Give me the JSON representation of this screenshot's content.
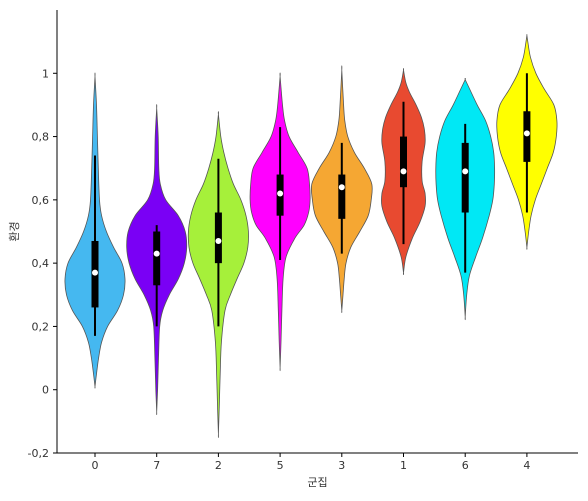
{
  "chart_data": {
    "type": "violin",
    "title": "",
    "xlabel": "군집",
    "ylabel": "환경",
    "ylim": [
      -0.2,
      1.2
    ],
    "yticks": [
      -0.2,
      0,
      0.2,
      0.4,
      0.6,
      0.8,
      1
    ],
    "ytick_labels": [
      "-0,2",
      "0",
      "0,2",
      "0,4",
      "0,6",
      "0,8",
      "1"
    ],
    "grid": false,
    "categories": [
      "0",
      "7",
      "2",
      "5",
      "3",
      "1",
      "6",
      "4"
    ],
    "violins": [
      {
        "category": "0",
        "color": "#45b8f0",
        "min": 0.01,
        "max": 0.99,
        "q1": 0.26,
        "median": 0.37,
        "q3": 0.47,
        "whisker_low": 0.17,
        "whisker_high": 0.74,
        "density": [
          [
            0.01,
            0.0
          ],
          [
            0.05,
            0.05
          ],
          [
            0.1,
            0.12
          ],
          [
            0.15,
            0.22
          ],
          [
            0.2,
            0.42
          ],
          [
            0.25,
            0.75
          ],
          [
            0.3,
            0.95
          ],
          [
            0.35,
            1.0
          ],
          [
            0.4,
            0.9
          ],
          [
            0.45,
            0.62
          ],
          [
            0.5,
            0.38
          ],
          [
            0.55,
            0.22
          ],
          [
            0.6,
            0.15
          ],
          [
            0.7,
            0.11
          ],
          [
            0.8,
            0.08
          ],
          [
            0.9,
            0.05
          ],
          [
            0.99,
            0.0
          ]
        ]
      },
      {
        "category": "7",
        "color": "#7a00f5",
        "min": -0.07,
        "max": 0.89,
        "q1": 0.33,
        "median": 0.43,
        "q3": 0.5,
        "whisker_low": 0.2,
        "whisker_high": 0.52,
        "density": [
          [
            -0.07,
            0.0
          ],
          [
            0.0,
            0.03
          ],
          [
            0.1,
            0.06
          ],
          [
            0.2,
            0.1
          ],
          [
            0.25,
            0.2
          ],
          [
            0.3,
            0.42
          ],
          [
            0.35,
            0.72
          ],
          [
            0.4,
            0.92
          ],
          [
            0.45,
            1.0
          ],
          [
            0.5,
            0.95
          ],
          [
            0.55,
            0.72
          ],
          [
            0.6,
            0.3
          ],
          [
            0.65,
            0.12
          ],
          [
            0.7,
            0.07
          ],
          [
            0.8,
            0.05
          ],
          [
            0.89,
            0.0
          ]
        ]
      },
      {
        "category": "2",
        "color": "#a6f03a",
        "min": -0.14,
        "max": 0.87,
        "q1": 0.4,
        "median": 0.47,
        "q3": 0.56,
        "whisker_low": 0.2,
        "whisker_high": 0.73,
        "density": [
          [
            -0.14,
            0.0
          ],
          [
            -0.05,
            0.03
          ],
          [
            0.05,
            0.06
          ],
          [
            0.15,
            0.1
          ],
          [
            0.25,
            0.22
          ],
          [
            0.3,
            0.4
          ],
          [
            0.35,
            0.62
          ],
          [
            0.4,
            0.85
          ],
          [
            0.45,
            0.98
          ],
          [
            0.5,
            1.0
          ],
          [
            0.55,
            0.92
          ],
          [
            0.6,
            0.75
          ],
          [
            0.65,
            0.5
          ],
          [
            0.7,
            0.32
          ],
          [
            0.75,
            0.18
          ],
          [
            0.8,
            0.08
          ],
          [
            0.87,
            0.0
          ]
        ]
      },
      {
        "category": "5",
        "color": "#ff00ff",
        "min": 0.07,
        "max": 0.99,
        "q1": 0.55,
        "median": 0.62,
        "q3": 0.68,
        "whisker_low": 0.41,
        "whisker_high": 0.83,
        "density": [
          [
            0.07,
            0.0
          ],
          [
            0.15,
            0.03
          ],
          [
            0.25,
            0.06
          ],
          [
            0.35,
            0.1
          ],
          [
            0.42,
            0.2
          ],
          [
            0.48,
            0.5
          ],
          [
            0.52,
            0.8
          ],
          [
            0.56,
            0.95
          ],
          [
            0.6,
            1.0
          ],
          [
            0.65,
            0.98
          ],
          [
            0.7,
            0.9
          ],
          [
            0.75,
            0.6
          ],
          [
            0.8,
            0.3
          ],
          [
            0.85,
            0.15
          ],
          [
            0.9,
            0.08
          ],
          [
            0.99,
            0.0
          ]
        ]
      },
      {
        "category": "3",
        "color": "#f5a733",
        "min": 0.25,
        "max": 1.01,
        "q1": 0.54,
        "median": 0.64,
        "q3": 0.68,
        "whisker_low": 0.43,
        "whisker_high": 0.78,
        "density": [
          [
            0.25,
            0.0
          ],
          [
            0.3,
            0.04
          ],
          [
            0.35,
            0.08
          ],
          [
            0.4,
            0.14
          ],
          [
            0.45,
            0.3
          ],
          [
            0.5,
            0.6
          ],
          [
            0.55,
            0.88
          ],
          [
            0.6,
            0.98
          ],
          [
            0.65,
            1.0
          ],
          [
            0.7,
            0.75
          ],
          [
            0.75,
            0.42
          ],
          [
            0.8,
            0.2
          ],
          [
            0.85,
            0.1
          ],
          [
            0.9,
            0.06
          ],
          [
            1.01,
            0.0
          ]
        ]
      },
      {
        "category": "1",
        "color": "#e84a30",
        "min": 0.37,
        "max": 1.01,
        "q1": 0.64,
        "median": 0.69,
        "q3": 0.8,
        "whisker_low": 0.46,
        "whisker_high": 0.91,
        "density": [
          [
            0.37,
            0.0
          ],
          [
            0.42,
            0.08
          ],
          [
            0.48,
            0.3
          ],
          [
            0.53,
            0.55
          ],
          [
            0.58,
            0.72
          ],
          [
            0.62,
            0.72
          ],
          [
            0.66,
            0.62
          ],
          [
            0.72,
            0.62
          ],
          [
            0.78,
            0.72
          ],
          [
            0.82,
            0.7
          ],
          [
            0.86,
            0.6
          ],
          [
            0.9,
            0.42
          ],
          [
            0.94,
            0.2
          ],
          [
            0.97,
            0.08
          ],
          [
            1.01,
            0.0
          ]
        ]
      },
      {
        "category": "6",
        "color": "#00e8f5",
        "min": 0.23,
        "max": 0.98,
        "q1": 0.56,
        "median": 0.69,
        "q3": 0.78,
        "whisker_low": 0.37,
        "whisker_high": 0.84,
        "density": [
          [
            0.23,
            0.0
          ],
          [
            0.3,
            0.05
          ],
          [
            0.36,
            0.14
          ],
          [
            0.42,
            0.35
          ],
          [
            0.48,
            0.58
          ],
          [
            0.55,
            0.8
          ],
          [
            0.6,
            0.92
          ],
          [
            0.65,
            0.97
          ],
          [
            0.7,
            0.98
          ],
          [
            0.75,
            0.95
          ],
          [
            0.8,
            0.85
          ],
          [
            0.85,
            0.68
          ],
          [
            0.9,
            0.4
          ],
          [
            0.95,
            0.15
          ],
          [
            0.98,
            0.0
          ]
        ]
      },
      {
        "category": "4",
        "color": "#ffff00",
        "min": 0.45,
        "max": 1.12,
        "q1": 0.72,
        "median": 0.81,
        "q3": 0.88,
        "whisker_low": 0.56,
        "whisker_high": 1.0,
        "density": [
          [
            0.45,
            0.0
          ],
          [
            0.5,
            0.06
          ],
          [
            0.55,
            0.14
          ],
          [
            0.6,
            0.28
          ],
          [
            0.65,
            0.48
          ],
          [
            0.7,
            0.68
          ],
          [
            0.75,
            0.88
          ],
          [
            0.8,
            0.98
          ],
          [
            0.85,
            1.0
          ],
          [
            0.9,
            0.9
          ],
          [
            0.95,
            0.58
          ],
          [
            1.0,
            0.3
          ],
          [
            1.05,
            0.12
          ],
          [
            1.1,
            0.03
          ],
          [
            1.12,
            0.0
          ]
        ]
      }
    ]
  }
}
